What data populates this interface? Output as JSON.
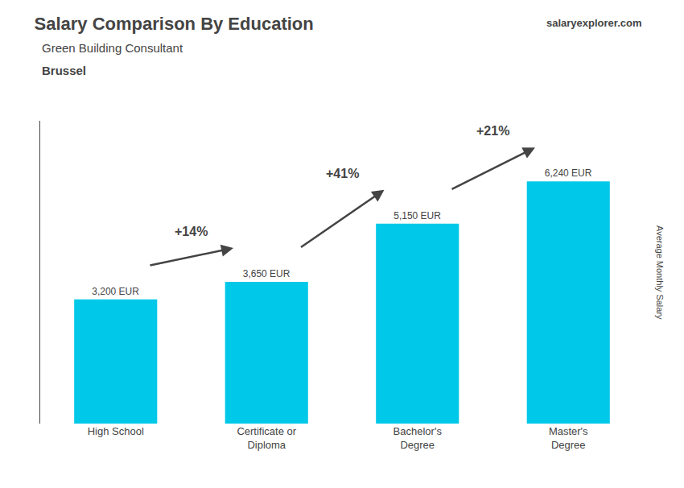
{
  "chart_data": {
    "type": "bar",
    "title": "Salary Comparison By Education",
    "subtitle": [
      "Green Building Consultant",
      "Brussel"
    ],
    "ylabel": "Average Monthly Salary",
    "categories": [
      "High School",
      "Certificate or\nDiploma",
      "Bachelor's\nDegree",
      "Master's\nDegree"
    ],
    "values": [
      3200,
      3650,
      5150,
      6240
    ],
    "value_labels": [
      "3,200 EUR",
      "3,650 EUR",
      "5,150 EUR",
      "6,240 EUR"
    ],
    "data_labels": true,
    "color": "#00c8e8",
    "ylim": [
      0,
      7800
    ],
    "tick_labels": "x",
    "grid": false,
    "annotations": [
      {
        "text": "+14%",
        "from": "High School",
        "to": "Certificate or\nDiploma"
      },
      {
        "text": "+41%",
        "from": "Certificate or\nDiploma",
        "to": "Bachelor's\nDegree"
      },
      {
        "text": "+21%",
        "from": "Bachelor's\nDegree",
        "to": "Master's\nDegree"
      },
      {
        "text": "salaryexplorer.com"
      }
    ]
  }
}
